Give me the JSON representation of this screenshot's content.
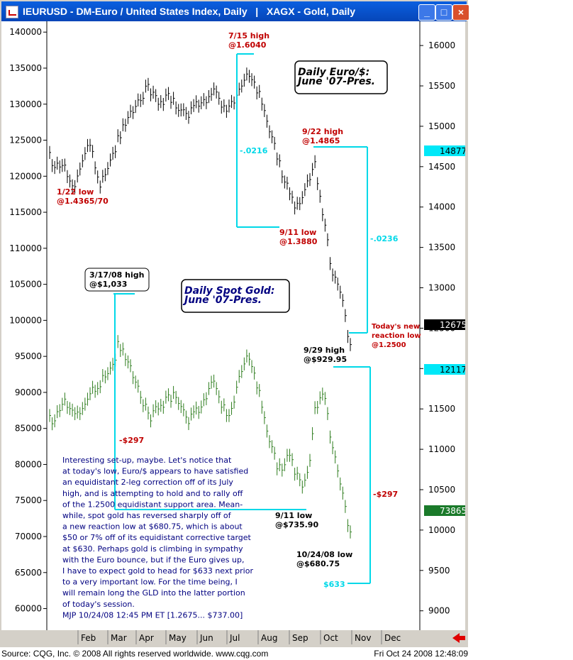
{
  "window": {
    "title": "IEURUSD - DM-Euro / United States Index, Daily   |   XAGX - Gold, Daily",
    "minimize_icon": "minimize-icon",
    "maximize_icon": "maximize-icon",
    "close_icon": "close-icon"
  },
  "status_bar": {
    "source": "Source: CQG, Inc. © 2008 All rights reserved worldwide.  www.cqg.com",
    "timestamp": "Fri Oct 24 2008 12:48:09"
  },
  "colors": {
    "euro_series": "#000000",
    "gold_series": "#2e7d1e",
    "red_annotation": "#c00000",
    "cyan": "#00d8e8",
    "navy": "#000080",
    "accent_arrow": "#e00000"
  },
  "chart_data": {
    "type": "bar",
    "series": [
      {
        "name": "IEURUSD",
        "axis": "left",
        "y_units": "index",
        "ylim": [
          57000,
          141500
        ],
        "ticks": [
          "140000",
          "135000",
          "130000",
          "125000",
          "120000",
          "115000",
          "110000",
          "105000",
          "100000",
          "95000",
          "90000",
          "85000",
          "80000",
          "75000",
          "70000",
          "65000",
          "60000"
        ],
        "last": "12675",
        "key_levels": [
          {
            "date": "2008-01-22",
            "y": 1.4365,
            "label": "1/22 low @1.4365/70"
          },
          {
            "date": "2008-07-15",
            "y": 1.604,
            "label": "7/15 high @1.6040"
          },
          {
            "date": "2008-09-11",
            "y": 1.388,
            "label": "9/11 low @1.3880"
          },
          {
            "date": "2008-09-22",
            "y": 1.4865,
            "label": "9/22 high @1.4865"
          },
          {
            "date": "2008-10-24",
            "y": 1.25,
            "label": "Today's new reaction low @1.2500"
          }
        ]
      },
      {
        "name": "XAGX",
        "axis": "right",
        "y_units": "index",
        "ylim": [
          8760,
          16300
        ],
        "ticks": [
          "16000",
          "15500",
          "15000",
          "14500",
          "14000",
          "13500",
          "13000",
          "12500",
          "12000",
          "11500",
          "11000",
          "10500",
          "10000",
          "9500",
          "9000"
        ],
        "right_axis_badges": [
          "14877",
          "12675",
          "12117",
          "73865"
        ],
        "key_levels": [
          {
            "date": "2008-03-17",
            "y": 1033,
            "label": "3/17/08 high @$1,033"
          },
          {
            "date": "2008-09-11",
            "y": 735.9,
            "label": "9/11 low @$735.90"
          },
          {
            "date": "2008-09-29",
            "y": 929.95,
            "label": "9/29 high @$929.95"
          },
          {
            "date": "2008-10-24",
            "y": 680.75,
            "label": "10/24/08 low @$680.75"
          }
        ]
      }
    ],
    "x_months": [
      "Feb",
      "Mar",
      "Apr",
      "May",
      "Jun",
      "Jul",
      "Aug",
      "Sep",
      "Oct",
      "Nov",
      "Dec"
    ]
  },
  "labels": {
    "euro_box": [
      "Daily Euro/$:",
      "June '07-Pres."
    ],
    "gold_box": [
      "Daily Spot Gold:",
      "June '07-Pres."
    ],
    "jan22": [
      "1/22 low",
      "@1.4365/70"
    ],
    "jul15": [
      "7/15 high",
      "@1.6040"
    ],
    "sep22": [
      "9/22 high",
      "@1.4865"
    ],
    "sep11e": [
      "9/11 low",
      "@1.3880"
    ],
    "todays": [
      "Today's new",
      "reaction low",
      "@1.2500"
    ],
    "mar17": [
      "3/17/08 high",
      "@$1,033"
    ],
    "sep29": [
      "9/29 high",
      "@$929.95"
    ],
    "sep11g": [
      "9/11 low",
      "@$735.90"
    ],
    "oct24": [
      "10/24/08 low",
      "@$680.75"
    ],
    "diff_euro1": "-.0216",
    "diff_euro2": "-.0236",
    "diff_gold1": "-$297",
    "diff_gold2": "-$297",
    "target": "$633"
  },
  "commentary": [
    "Interesting set-up, maybe. Let's notice that",
    "at today's low, Euro/$ appears to have satisfied",
    "an equidistant 2-leg correction off of its July",
    "high, and is attempting to hold and to rally off",
    "of the 1.2500 equidistant support area. Mean-",
    "while, spot gold has reversed sharply off of",
    "a new reaction low at $680.75, which is about",
    "$50 or 7% off of its equidistant corrective target",
    "at $630. Perhaps gold is climbing in sympathy",
    "with the Euro bounce, but if the Euro gives up,",
    "I have to expect gold to head for $633 next prior",
    "to a very important low. For the time being, I",
    "will remain long the GLD into the latter portion",
    "of today's session.",
    "MJP  10/24/08 12:45 PM ET [1.2675... $737.00]"
  ]
}
